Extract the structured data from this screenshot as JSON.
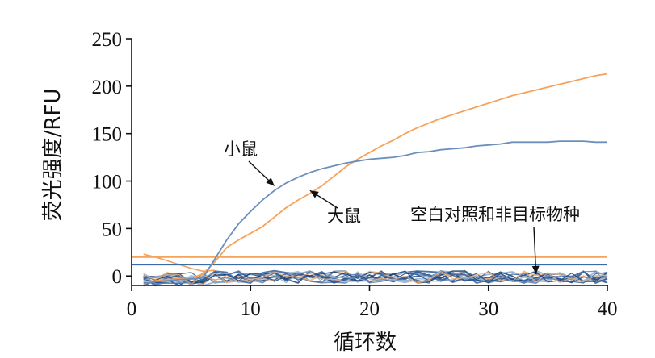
{
  "chart_data": {
    "type": "line",
    "xlabel": "循环数",
    "ylabel": "荧光强度/RFU",
    "xlim": [
      0,
      40
    ],
    "ylim": [
      -10,
      250
    ],
    "xticks": [
      0,
      10,
      20,
      30,
      40
    ],
    "yticks": [
      0,
      50,
      100,
      150,
      200,
      250
    ],
    "grid": false,
    "series": [
      {
        "label": "大鼠",
        "color": "#f5a25a",
        "x": [
          1,
          2,
          3,
          4,
          5,
          6,
          7,
          8,
          9,
          10,
          11,
          12,
          13,
          14,
          15,
          16,
          17,
          18,
          19,
          20,
          21,
          22,
          23,
          24,
          25,
          26,
          27,
          28,
          29,
          30,
          31,
          32,
          33,
          34,
          35,
          36,
          37,
          38,
          39,
          40
        ],
        "y": [
          -6,
          -5,
          -4,
          -3,
          -2,
          2,
          15,
          30,
          38,
          45,
          52,
          62,
          72,
          80,
          87,
          95,
          105,
          115,
          123,
          130,
          137,
          143,
          150,
          156,
          161,
          166,
          170,
          174,
          178,
          182,
          186,
          190,
          193,
          196,
          199,
          202,
          205,
          208,
          211,
          213
        ]
      },
      {
        "label": "小鼠",
        "color": "#6a8fbf",
        "x": [
          1,
          2,
          3,
          4,
          5,
          6,
          7,
          8,
          9,
          10,
          11,
          12,
          13,
          14,
          15,
          16,
          17,
          18,
          19,
          20,
          21,
          22,
          23,
          24,
          25,
          26,
          27,
          28,
          29,
          30,
          31,
          32,
          33,
          34,
          35,
          36,
          37,
          38,
          39,
          40
        ],
        "y": [
          -8,
          -6,
          -5,
          -4,
          -3,
          -2,
          18,
          38,
          55,
          68,
          80,
          90,
          98,
          104,
          109,
          113,
          116,
          119,
          121,
          123,
          124,
          125,
          127,
          130,
          131,
          133,
          134,
          135,
          137,
          138,
          139,
          141,
          141,
          141,
          141,
          142,
          142,
          142,
          141,
          141
        ]
      },
      {
        "label": "空白对照和非目标物种",
        "color": "#1f4e8a",
        "noise_band": [
          -12,
          10
        ],
        "traces": 14
      }
    ],
    "thresholds": [
      {
        "y": 20,
        "color": "#f5a25a"
      },
      {
        "y": 12,
        "color": "#3e6aa8"
      }
    ],
    "early_orange": {
      "x": [
        1,
        2,
        3,
        4,
        5,
        6,
        7
      ],
      "y": [
        23,
        20,
        16,
        12,
        8,
        5,
        6
      ]
    },
    "annotations": [
      {
        "text": "小鼠",
        "arrow_to": [
          12,
          95
        ]
      },
      {
        "text": "大鼠",
        "arrow_to": [
          15,
          90
        ]
      },
      {
        "text": "空白对照和非目标物种",
        "arrow_to": [
          34,
          2
        ]
      }
    ]
  }
}
